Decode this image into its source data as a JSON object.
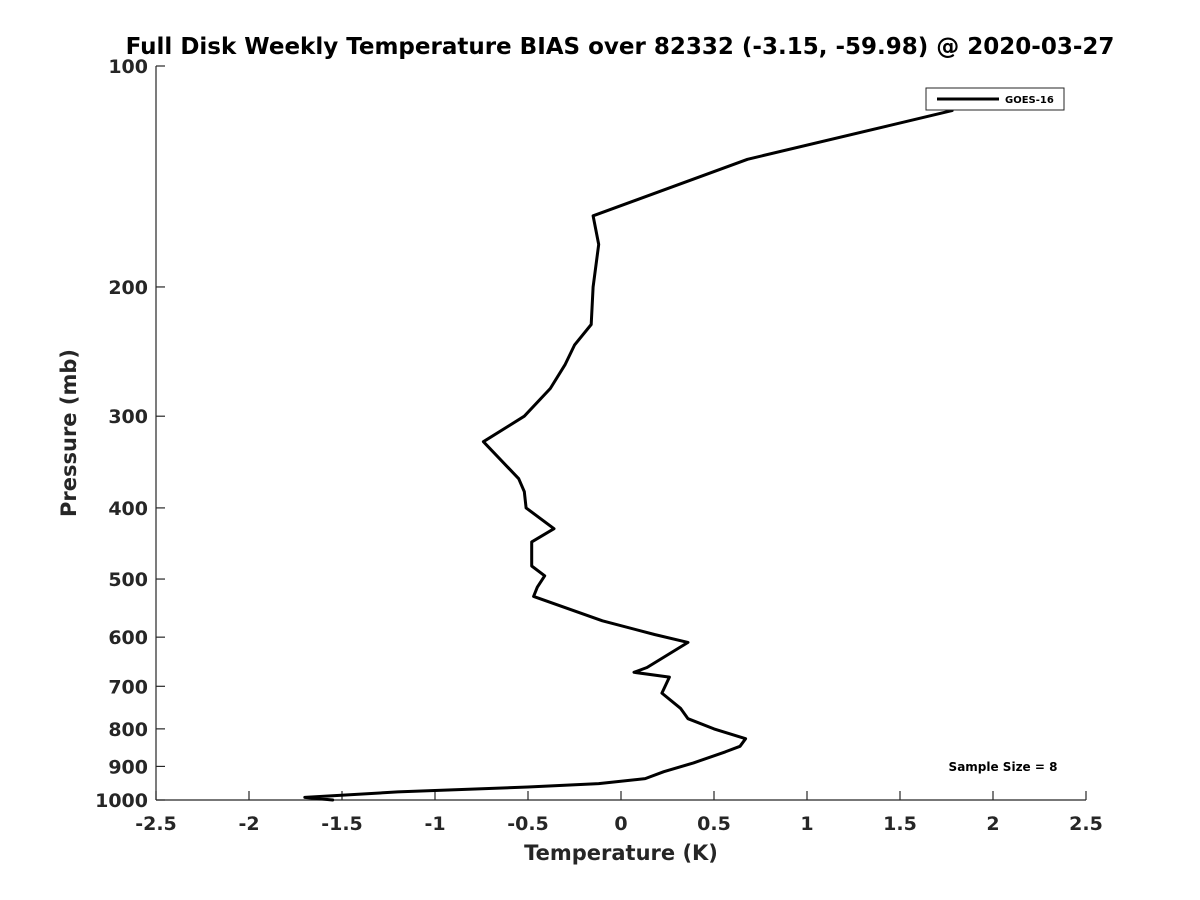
{
  "chart_data": {
    "type": "line",
    "title": "Full Disk Weekly Temperature BIAS over 82332 (-3.15, -59.98) @ 2020-03-27",
    "xlabel": "Temperature (K)",
    "ylabel": "Pressure (mb)",
    "xlim": [
      -2.5,
      2.5
    ],
    "ylim": [
      100,
      1000
    ],
    "y_scale": "log",
    "y_reversed": true,
    "x_ticks": [
      "-2.5",
      "-2",
      "-1.5",
      "-1",
      "-0.5",
      "0",
      "0.5",
      "1",
      "1.5",
      "2",
      "2.5"
    ],
    "y_ticks": [
      "100",
      "200",
      "300",
      "400",
      "500",
      "600",
      "700",
      "800",
      "900",
      "1000"
    ],
    "grid": false,
    "legend": {
      "position": "top-right"
    },
    "annotation": "Sample Size = 8",
    "series": [
      {
        "name": "GOES-16",
        "color": "#000000",
        "points": [
          [
            1.78,
            115
          ],
          [
            0.68,
            134
          ],
          [
            -0.15,
            160
          ],
          [
            -0.12,
            175
          ],
          [
            -0.15,
            200
          ],
          [
            -0.16,
            225
          ],
          [
            -0.25,
            240
          ],
          [
            -0.3,
            255
          ],
          [
            -0.38,
            275
          ],
          [
            -0.52,
            300
          ],
          [
            -0.74,
            325
          ],
          [
            -0.55,
            365
          ],
          [
            -0.52,
            380
          ],
          [
            -0.51,
            400
          ],
          [
            -0.36,
            427
          ],
          [
            -0.48,
            445
          ],
          [
            -0.48,
            480
          ],
          [
            -0.41,
            495
          ],
          [
            -0.45,
            513
          ],
          [
            -0.47,
            528
          ],
          [
            -0.1,
            570
          ],
          [
            0.18,
            595
          ],
          [
            0.36,
            610
          ],
          [
            0.14,
            660
          ],
          [
            0.07,
            670
          ],
          [
            0.26,
            680
          ],
          [
            0.22,
            715
          ],
          [
            0.32,
            750
          ],
          [
            0.36,
            775
          ],
          [
            0.5,
            800
          ],
          [
            0.67,
            825
          ],
          [
            0.64,
            845
          ],
          [
            0.56,
            860
          ],
          [
            0.39,
            890
          ],
          [
            0.23,
            915
          ],
          [
            0.13,
            935
          ],
          [
            -0.12,
            950
          ],
          [
            -0.5,
            960
          ],
          [
            -1.2,
            975
          ],
          [
            -1.7,
            992
          ],
          [
            -1.55,
            1000
          ]
        ]
      }
    ]
  }
}
